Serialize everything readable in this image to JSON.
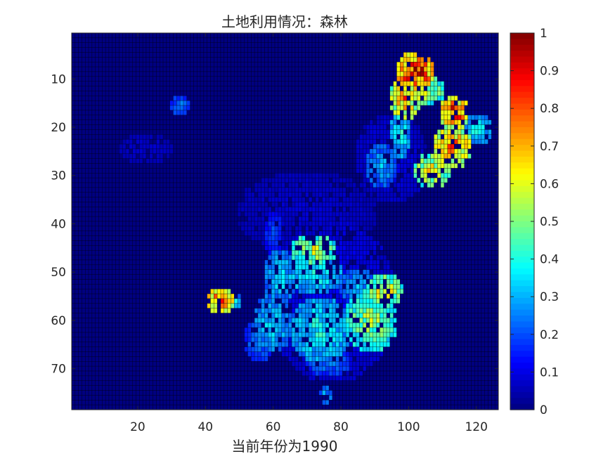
{
  "chart_data": {
    "type": "heatmap",
    "title": "土地利用情况：森林",
    "xlabel": "当前年份为1990",
    "ylabel": "",
    "x_range": [
      1,
      126
    ],
    "y_range": [
      1,
      78
    ],
    "y_reversed": true,
    "x_ticks": [
      20,
      40,
      60,
      80,
      100,
      120
    ],
    "y_ticks": [
      10,
      20,
      30,
      40,
      50,
      60,
      70
    ],
    "colorbar": {
      "colormap": "jet",
      "range": [
        0,
        1
      ],
      "ticks": [
        0,
        0.1,
        0.2,
        0.3,
        0.4,
        0.5,
        0.6,
        0.7,
        0.8,
        0.9,
        1
      ]
    },
    "background_value": 0,
    "cell_grid": true,
    "regions": [
      {
        "x": [
          97,
          107
        ],
        "y": [
          5,
          12
        ],
        "value": 0.95
      },
      {
        "x": [
          95,
          103
        ],
        "y": [
          10,
          18
        ],
        "value": 0.75
      },
      {
        "x": [
          100,
          110
        ],
        "y": [
          10,
          15
        ],
        "value": 0.6
      },
      {
        "x": [
          95,
          100
        ],
        "y": [
          17,
          26
        ],
        "value": 0.4
      },
      {
        "x": [
          88,
          96
        ],
        "y": [
          24,
          32
        ],
        "value": 0.3
      },
      {
        "x": [
          110,
          117
        ],
        "y": [
          14,
          20
        ],
        "value": 0.9
      },
      {
        "x": [
          108,
          118
        ],
        "y": [
          20,
          28
        ],
        "value": 0.8
      },
      {
        "x": [
          102,
          112
        ],
        "y": [
          26,
          32
        ],
        "value": 0.65
      },
      {
        "x": [
          117,
          124
        ],
        "y": [
          18,
          23
        ],
        "value": 0.4
      },
      {
        "x": [
          66,
          78
        ],
        "y": [
          43,
          48
        ],
        "value": 0.6
      },
      {
        "x": [
          64,
          80
        ],
        "y": [
          47,
          54
        ],
        "value": 0.4
      },
      {
        "x": [
          58,
          66
        ],
        "y": [
          46,
          56
        ],
        "value": 0.35
      },
      {
        "x": [
          55,
          65
        ],
        "y": [
          55,
          66
        ],
        "value": 0.35
      },
      {
        "x": [
          52,
          60
        ],
        "y": [
          60,
          68
        ],
        "value": 0.25
      },
      {
        "x": [
          66,
          82
        ],
        "y": [
          56,
          68
        ],
        "value": 0.4
      },
      {
        "x": [
          82,
          96
        ],
        "y": [
          54,
          66
        ],
        "value": 0.55
      },
      {
        "x": [
          88,
          98
        ],
        "y": [
          51,
          57
        ],
        "value": 0.65
      },
      {
        "x": [
          80,
          90
        ],
        "y": [
          50,
          56
        ],
        "value": 0.3
      },
      {
        "x": [
          70,
          82
        ],
        "y": [
          66,
          71
        ],
        "value": 0.25
      },
      {
        "x": [
          58,
          62
        ],
        "y": [
          38,
          46
        ],
        "value": 0.2
      },
      {
        "x": [
          41,
          48
        ],
        "y": [
          54,
          58
        ],
        "value": 0.9
      },
      {
        "x": [
          47,
          50
        ],
        "y": [
          55,
          57
        ],
        "value": 0.4
      },
      {
        "x": [
          74,
          77
        ],
        "y": [
          74,
          77
        ],
        "value": 0.3
      },
      {
        "x": [
          30,
          35
        ],
        "y": [
          14,
          17
        ],
        "value": 0.25
      },
      {
        "x": [
          15,
          30
        ],
        "y": [
          22,
          27
        ],
        "value": 0.08
      },
      {
        "x": [
          50,
          90
        ],
        "y": [
          30,
          45
        ],
        "value": 0.08
      },
      {
        "x": [
          60,
          95
        ],
        "y": [
          40,
          72
        ],
        "value": 0.12
      },
      {
        "x": [
          85,
          105
        ],
        "y": [
          18,
          35
        ],
        "value": 0.1
      }
    ]
  }
}
